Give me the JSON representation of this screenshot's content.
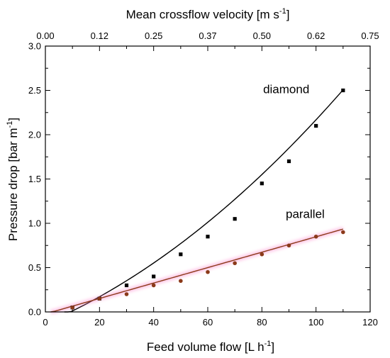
{
  "chart_data": {
    "type": "scatter",
    "xlabel_main": "Feed volume flow [L h",
    "xlabel_sup": "-1",
    "xlabel_end": "]",
    "x2label_main": "Mean crossflow velocity [m s",
    "x2label_sup": "-1",
    "x2label_end": "]",
    "ylabel_main": "Pressure drop [bar m",
    "ylabel_sup": "-1",
    "ylabel_end": "]",
    "xlim": [
      0,
      120
    ],
    "ylim": [
      0,
      3.0
    ],
    "x_ticks": [
      "0",
      "20",
      "40",
      "60",
      "80",
      "100",
      "120"
    ],
    "y_ticks": [
      "0.0",
      "0.5",
      "1.0",
      "1.5",
      "2.0",
      "2.5",
      "3.0"
    ],
    "x2_ticks": [
      "0.00",
      "0.12",
      "0.25",
      "0.37",
      "0.50",
      "0.62",
      "0.75"
    ],
    "series": [
      {
        "name": "diamond",
        "marker": "square",
        "color": "#000000",
        "x": [
          10,
          20,
          30,
          40,
          50,
          60,
          70,
          80,
          90,
          100,
          110
        ],
        "y": [
          0.05,
          0.15,
          0.3,
          0.4,
          0.65,
          0.85,
          1.05,
          1.45,
          1.7,
          2.1,
          2.5
        ],
        "fit": {
          "kind": "quadratic",
          "coeffs": [
            -0.13,
            0.0131,
            9.88e-05
          ],
          "x_range": [
            7,
            110
          ]
        }
      },
      {
        "name": "parallel",
        "marker": "circle",
        "color": "#8B3A1A",
        "x": [
          10,
          20,
          30,
          40,
          50,
          60,
          70,
          80,
          90,
          100,
          110
        ],
        "y": [
          0.05,
          0.15,
          0.2,
          0.3,
          0.35,
          0.45,
          0.55,
          0.65,
          0.75,
          0.85,
          0.9
        ],
        "fit": {
          "kind": "linear",
          "coeffs": [
            -0.022,
            0.0087
          ],
          "x_range": [
            2,
            110
          ]
        }
      }
    ]
  }
}
